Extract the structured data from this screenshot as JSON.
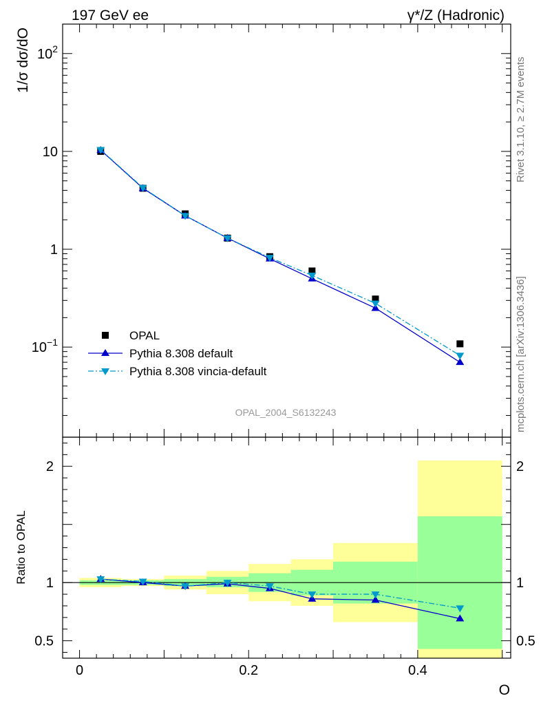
{
  "header": {
    "left": "197 GeV ee",
    "right": "γ*/Z (Hadronic)"
  },
  "side_labels": {
    "rivet": "Rivet 3.1.10, ≥ 2.7M events",
    "mcplots": "mcplots.cern.ch [arXiv:1306.3436]"
  },
  "analysis_id": "OPAL_2004_S6132243",
  "colors": {
    "data": "#000000",
    "pythia_default": "#0000cc",
    "pythia_vincia": "#0099cc",
    "band_outer": "#ffff99",
    "band_inner": "#99ff99"
  },
  "chart_data": [
    {
      "type": "scatter",
      "panel": "main",
      "ylabel": "1/σ dσ/dO",
      "yscale": "log",
      "ylim": [
        0.012,
        200
      ],
      "xlim": [
        -0.02,
        0.51
      ],
      "y_ticks": [
        {
          "value": 0.1,
          "base": "10",
          "exp": "−1"
        },
        {
          "value": 1,
          "label": "1"
        },
        {
          "value": 10,
          "label": "10"
        },
        {
          "value": 100,
          "base": "10",
          "exp": "2"
        }
      ],
      "legend_position": "bottom-left",
      "series": [
        {
          "name": "OPAL",
          "marker": "square",
          "x": [
            0.025,
            0.075,
            0.125,
            0.175,
            0.225,
            0.275,
            0.35,
            0.45
          ],
          "y": [
            10.0,
            4.2,
            2.3,
            1.3,
            0.84,
            0.6,
            0.31,
            0.108
          ]
        },
        {
          "name": "Pythia 8.308 default",
          "marker": "triangle-up",
          "line": "solid",
          "x": [
            0.025,
            0.075,
            0.125,
            0.175,
            0.225,
            0.275,
            0.35,
            0.45
          ],
          "y": [
            10.3,
            4.2,
            2.2,
            1.3,
            0.8,
            0.5,
            0.25,
            0.07
          ]
        },
        {
          "name": "Pythia 8.308 vincia-default",
          "marker": "triangle-down",
          "line": "dashdot",
          "x": [
            0.025,
            0.075,
            0.125,
            0.175,
            0.225,
            0.275,
            0.35,
            0.45
          ],
          "y": [
            10.4,
            4.25,
            2.2,
            1.3,
            0.82,
            0.54,
            0.28,
            0.082
          ]
        }
      ]
    },
    {
      "type": "line",
      "panel": "ratio",
      "ylabel": "Ratio to OPAL",
      "xlabel": "O",
      "ylim": [
        0.35,
        2.25
      ],
      "xlim": [
        -0.02,
        0.51
      ],
      "y_ticks": [
        0.5,
        1,
        2
      ],
      "y_tick_labels": [
        "0.5",
        "1",
        "2"
      ],
      "x_ticks": [
        0,
        0.2,
        0.4
      ],
      "x_tick_labels": [
        "0",
        "0.2",
        "0.4"
      ],
      "bands": {
        "edges": [
          0.0,
          0.05,
          0.1,
          0.15,
          0.2,
          0.25,
          0.3,
          0.4,
          0.5
        ],
        "outer_lo": [
          0.96,
          0.97,
          0.94,
          0.9,
          0.84,
          0.8,
          0.66,
          0.35
        ],
        "outer_hi": [
          1.04,
          1.03,
          1.06,
          1.1,
          1.16,
          1.2,
          1.34,
          2.05
        ],
        "inner_lo": [
          0.98,
          0.98,
          0.97,
          0.96,
          0.92,
          0.89,
          0.82,
          0.43
        ],
        "inner_hi": [
          1.02,
          1.02,
          1.03,
          1.05,
          1.08,
          1.11,
          1.18,
          1.57
        ]
      },
      "series": [
        {
          "name": "Pythia 8.308 default",
          "marker": "triangle-up",
          "line": "solid",
          "x": [
            0.025,
            0.075,
            0.125,
            0.175,
            0.225,
            0.275,
            0.35,
            0.45
          ],
          "y": [
            1.03,
            1.0,
            0.97,
            0.99,
            0.95,
            0.86,
            0.85,
            0.69
          ]
        },
        {
          "name": "Pythia 8.308 vincia-default",
          "marker": "triangle-down",
          "line": "dashdot",
          "x": [
            0.025,
            0.075,
            0.125,
            0.175,
            0.225,
            0.275,
            0.35,
            0.45
          ],
          "y": [
            1.03,
            1.01,
            0.97,
            1.0,
            0.97,
            0.9,
            0.9,
            0.78
          ]
        }
      ]
    }
  ]
}
